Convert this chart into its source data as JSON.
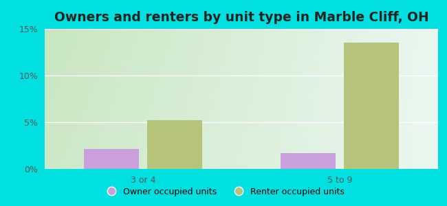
{
  "categories": [
    "3 or 4",
    "5 to 9"
  ],
  "owner_values": [
    2.1,
    1.7
  ],
  "renter_values": [
    5.2,
    13.5
  ],
  "owner_color": "#c9a0dc",
  "renter_color": "#b5c47a",
  "title": "Owners and renters by unit type in Marble Cliff, OH",
  "ylim": [
    0,
    15
  ],
  "yticks": [
    0,
    5,
    10,
    15
  ],
  "yticklabels": [
    "0%",
    "5%",
    "10%",
    "15%"
  ],
  "bg_outer": "#00e0e0",
  "legend_owner": "Owner occupied units",
  "legend_renter": "Renter occupied units",
  "bar_width": 0.28,
  "title_fontsize": 13.5,
  "bg_gradient_left": "#c8e6c0",
  "bg_gradient_right": "#eaf7f0"
}
